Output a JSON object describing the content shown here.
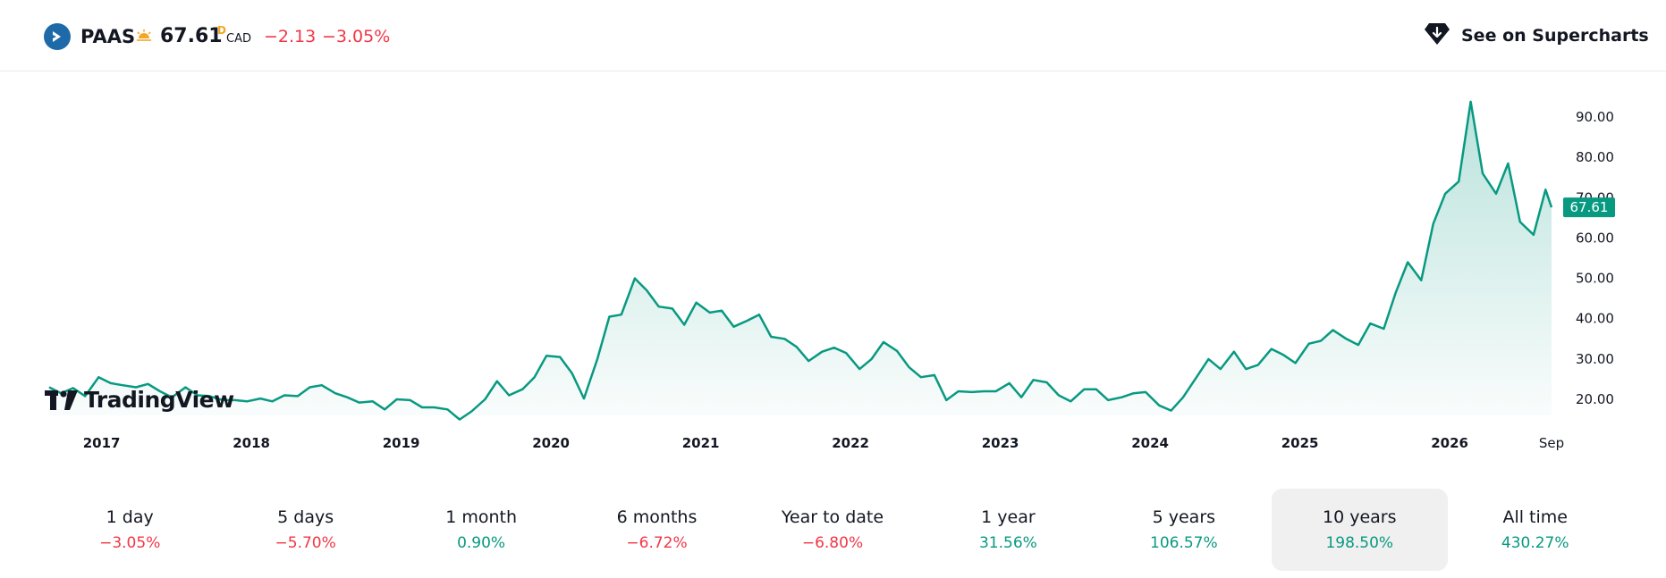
{
  "header": {
    "ticker": "PAAS",
    "price": "67.61",
    "price_flag": "D",
    "currency": "CAD",
    "change_abs": "−2.13",
    "change_pct": "−3.05%",
    "supercharts_label": "See on Supercharts"
  },
  "colors": {
    "line": "#089981",
    "negative": "#f23645",
    "positive": "#089981",
    "price_badge": "#089981"
  },
  "chart_data": {
    "type": "area",
    "title": "",
    "xlabel": "",
    "ylabel": "",
    "xlim": [
      2016.65,
      2026.68
    ],
    "ylim": [
      14,
      96
    ],
    "x_ticks": [
      {
        "x": 2017,
        "label": "2017"
      },
      {
        "x": 2018,
        "label": "2018"
      },
      {
        "x": 2019,
        "label": "2019"
      },
      {
        "x": 2020,
        "label": "2020"
      },
      {
        "x": 2021,
        "label": "2021"
      },
      {
        "x": 2022,
        "label": "2022"
      },
      {
        "x": 2023,
        "label": "2023"
      },
      {
        "x": 2024,
        "label": "2024"
      },
      {
        "x": 2025,
        "label": "2025"
      },
      {
        "x": 2026,
        "label": "2026"
      },
      {
        "x": 2026.68,
        "label": "Sep"
      }
    ],
    "y_ticks": [
      20,
      30,
      40,
      50,
      60,
      70,
      80,
      90
    ],
    "y_tick_labels": [
      "20.00",
      "30.00",
      "40.00",
      "50.00",
      "60.00",
      "70.00",
      "80.00",
      "90.00"
    ],
    "last_value_label": "67.61",
    "grid": false,
    "series": [
      {
        "values": [
          [
            2016.65,
            23.0
          ],
          [
            2016.73,
            21.5
          ],
          [
            2016.81,
            22.8
          ],
          [
            2016.89,
            20.8
          ],
          [
            2016.98,
            25.5
          ],
          [
            2017.06,
            24.0
          ],
          [
            2017.14,
            23.5
          ],
          [
            2017.23,
            23.0
          ],
          [
            2017.31,
            23.8
          ],
          [
            2017.39,
            22.0
          ],
          [
            2017.47,
            20.5
          ],
          [
            2017.56,
            23.0
          ],
          [
            2017.64,
            21.0
          ],
          [
            2017.72,
            20.8
          ],
          [
            2017.81,
            19.8
          ],
          [
            2017.89,
            19.8
          ],
          [
            2017.97,
            19.5
          ],
          [
            2018.06,
            20.2
          ],
          [
            2018.14,
            19.5
          ],
          [
            2018.22,
            21.0
          ],
          [
            2018.31,
            20.8
          ],
          [
            2018.39,
            23.0
          ],
          [
            2018.47,
            23.5
          ],
          [
            2018.56,
            21.5
          ],
          [
            2018.64,
            20.5
          ],
          [
            2018.72,
            19.2
          ],
          [
            2018.81,
            19.5
          ],
          [
            2018.89,
            17.5
          ],
          [
            2018.97,
            20.0
          ],
          [
            2019.06,
            19.8
          ],
          [
            2019.14,
            18.0
          ],
          [
            2019.22,
            18.0
          ],
          [
            2019.31,
            17.5
          ],
          [
            2019.39,
            15.0
          ],
          [
            2019.47,
            17.0
          ],
          [
            2019.56,
            20.0
          ],
          [
            2019.64,
            24.5
          ],
          [
            2019.72,
            21.0
          ],
          [
            2019.81,
            22.5
          ],
          [
            2019.89,
            25.5
          ],
          [
            2019.97,
            30.8
          ],
          [
            2020.06,
            30.5
          ],
          [
            2020.14,
            26.5
          ],
          [
            2020.22,
            20.2
          ],
          [
            2020.31,
            30.0
          ],
          [
            2020.39,
            40.5
          ],
          [
            2020.47,
            41.0
          ],
          [
            2020.56,
            50.0
          ],
          [
            2020.64,
            47.0
          ],
          [
            2020.72,
            43.0
          ],
          [
            2020.81,
            42.5
          ],
          [
            2020.89,
            38.5
          ],
          [
            2020.97,
            44.0
          ],
          [
            2021.06,
            41.5
          ],
          [
            2021.14,
            42.0
          ],
          [
            2021.22,
            38.0
          ],
          [
            2021.31,
            39.5
          ],
          [
            2021.39,
            41.0
          ],
          [
            2021.47,
            35.5
          ],
          [
            2021.56,
            35.0
          ],
          [
            2021.64,
            33.0
          ],
          [
            2021.72,
            29.5
          ],
          [
            2021.81,
            31.8
          ],
          [
            2021.89,
            32.8
          ],
          [
            2021.97,
            31.5
          ],
          [
            2022.06,
            27.5
          ],
          [
            2022.14,
            30.0
          ],
          [
            2022.22,
            34.2
          ],
          [
            2022.31,
            32.0
          ],
          [
            2022.39,
            28.0
          ],
          [
            2022.47,
            25.5
          ],
          [
            2022.56,
            26.0
          ],
          [
            2022.64,
            19.8
          ],
          [
            2022.72,
            22.0
          ],
          [
            2022.81,
            21.8
          ],
          [
            2022.89,
            22.0
          ],
          [
            2022.97,
            22.0
          ],
          [
            2023.06,
            24.0
          ],
          [
            2023.14,
            20.5
          ],
          [
            2023.22,
            24.8
          ],
          [
            2023.31,
            24.2
          ],
          [
            2023.39,
            21.0
          ],
          [
            2023.47,
            19.5
          ],
          [
            2023.56,
            22.5
          ],
          [
            2023.64,
            22.5
          ],
          [
            2023.72,
            19.8
          ],
          [
            2023.81,
            20.5
          ],
          [
            2023.89,
            21.5
          ],
          [
            2023.97,
            21.8
          ],
          [
            2024.06,
            18.5
          ],
          [
            2024.14,
            17.2
          ],
          [
            2024.22,
            20.5
          ],
          [
            2024.31,
            25.5
          ],
          [
            2024.39,
            30.0
          ],
          [
            2024.47,
            27.5
          ],
          [
            2024.56,
            31.8
          ],
          [
            2024.64,
            27.5
          ],
          [
            2024.72,
            28.5
          ],
          [
            2024.81,
            32.5
          ],
          [
            2024.89,
            31.0
          ],
          [
            2024.97,
            29.0
          ],
          [
            2025.06,
            33.8
          ],
          [
            2025.14,
            34.5
          ],
          [
            2025.22,
            37.2
          ],
          [
            2025.31,
            35.0
          ],
          [
            2025.39,
            33.5
          ],
          [
            2025.47,
            38.8
          ],
          [
            2025.56,
            37.5
          ],
          [
            2025.64,
            46.5
          ],
          [
            2025.72,
            54.0
          ],
          [
            2025.81,
            49.5
          ],
          [
            2025.89,
            63.5
          ],
          [
            2025.97,
            71.0
          ],
          [
            2026.06,
            74.0
          ],
          [
            2026.14,
            93.8
          ],
          [
            2026.22,
            76.0
          ],
          [
            2026.31,
            71.0
          ],
          [
            2026.39,
            78.5
          ],
          [
            2026.47,
            64.0
          ],
          [
            2026.56,
            60.8
          ],
          [
            2026.64,
            72.0
          ],
          [
            2026.68,
            67.61
          ]
        ]
      }
    ]
  },
  "periods": [
    {
      "label": "1 day",
      "value": "−3.05%",
      "sign": "neg",
      "active": false
    },
    {
      "label": "5 days",
      "value": "−5.70%",
      "sign": "neg",
      "active": false
    },
    {
      "label": "1 month",
      "value": "0.90%",
      "sign": "pos",
      "active": false
    },
    {
      "label": "6 months",
      "value": "−6.72%",
      "sign": "neg",
      "active": false
    },
    {
      "label": "Year to date",
      "value": "−6.80%",
      "sign": "neg",
      "active": false
    },
    {
      "label": "1 year",
      "value": "31.56%",
      "sign": "pos",
      "active": false
    },
    {
      "label": "5 years",
      "value": "106.57%",
      "sign": "pos",
      "active": false
    },
    {
      "label": "10 years",
      "value": "198.50%",
      "sign": "pos",
      "active": true
    },
    {
      "label": "All time",
      "value": "430.27%",
      "sign": "pos",
      "active": false
    }
  ],
  "branding": {
    "tv_logo_text": "TradingView",
    "logo_icon": "tradingview-logo-icon",
    "symbol_icon": "paas-symbol-logo-icon",
    "session_icon": "sun-icon",
    "supercharts_icon": "supercharts-diamond-icon"
  }
}
